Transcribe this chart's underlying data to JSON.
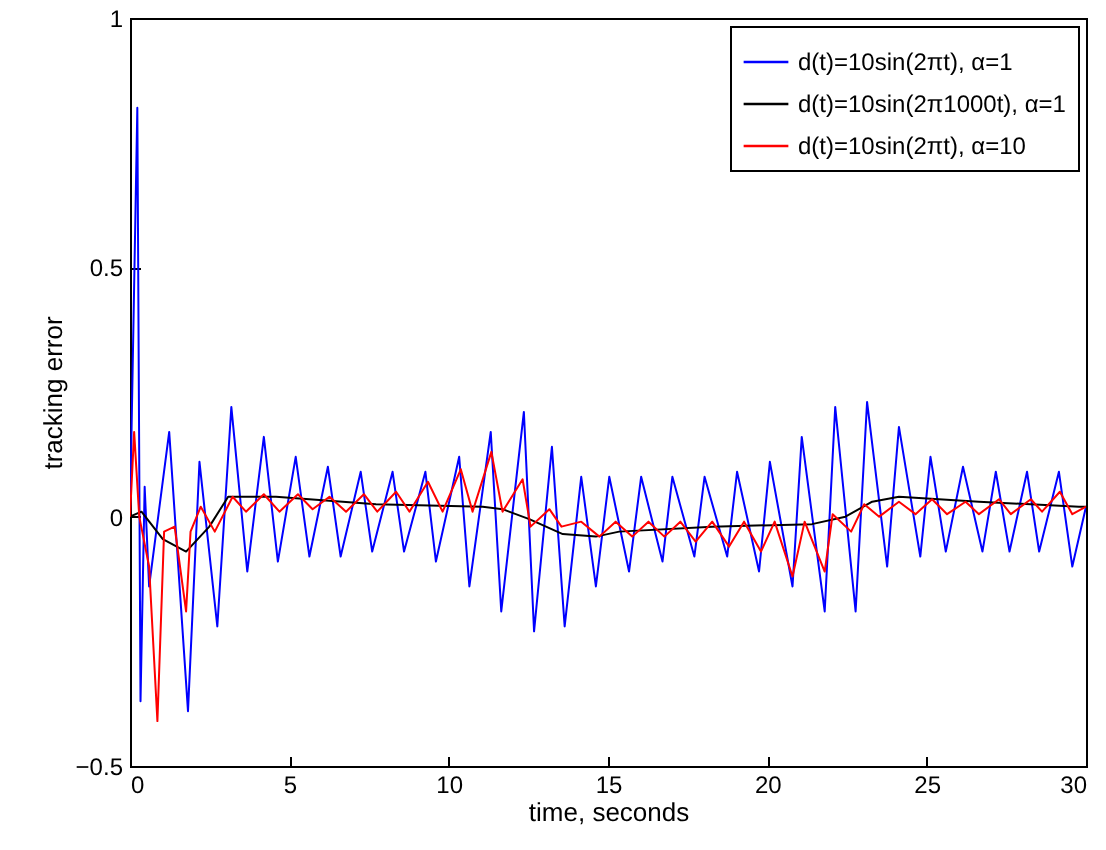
{
  "chart_data": {
    "type": "line",
    "xlabel": "time, seconds",
    "ylabel": "tracking error",
    "xlim": [
      0,
      30
    ],
    "ylim": [
      -0.5,
      1
    ],
    "xticks": [
      0,
      5,
      10,
      15,
      20,
      25,
      30
    ],
    "yticks": [
      -0.5,
      0,
      0.5,
      1
    ],
    "grid": false,
    "legend": "top right",
    "marker": "none",
    "line_style": "solid",
    "series": [
      {
        "name": "d(t)=10sin(2πt), α=1",
        "color": "#0000ff",
        "x": [
          0,
          0.23,
          0.33,
          0.46,
          0.6,
          1.23,
          1.82,
          2.18,
          2.74,
          3.18,
          3.68,
          4.2,
          4.64,
          5.2,
          5.63,
          6.21,
          6.61,
          7.24,
          7.6,
          8.24,
          8.6,
          9.27,
          9.6,
          10.33,
          10.65,
          11.32,
          11.65,
          12.36,
          12.68,
          13.24,
          13.64,
          14.16,
          14.62,
          15.04,
          15.66,
          16.04,
          16.71,
          17.02,
          17.71,
          18.03,
          18.74,
          19.05,
          19.74,
          20.08,
          20.79,
          21.08,
          21.8,
          22.13,
          22.77,
          23.13,
          23.76,
          24.13,
          24.8,
          25.12,
          25.6,
          26.14,
          26.75,
          27.17,
          27.6,
          28.15,
          28.53,
          29.15,
          29.57,
          30
        ],
        "values": [
          0,
          0.82,
          -0.37,
          0.06,
          -0.14,
          0.17,
          -0.39,
          0.11,
          -0.22,
          0.22,
          -0.11,
          0.16,
          -0.09,
          0.12,
          -0.08,
          0.1,
          -0.08,
          0.09,
          -0.07,
          0.09,
          -0.07,
          0.09,
          -0.09,
          0.12,
          -0.14,
          0.17,
          -0.19,
          0.21,
          -0.23,
          0.14,
          -0.22,
          0.08,
          -0.14,
          0.08,
          -0.11,
          0.08,
          -0.09,
          0.08,
          -0.08,
          0.08,
          -0.08,
          0.09,
          -0.11,
          0.11,
          -0.14,
          0.16,
          -0.19,
          0.22,
          -0.19,
          0.23,
          -0.1,
          0.18,
          -0.08,
          0.12,
          -0.07,
          0.1,
          -0.07,
          0.09,
          -0.07,
          0.09,
          -0.07,
          0.09,
          -0.1,
          0.02
        ]
      },
      {
        "name": "d(t)=10sin(2π1000t), α=1",
        "color": "#000000",
        "x": [
          0,
          0.36,
          1.03,
          1.76,
          2.49,
          3.08,
          4.58,
          7.72,
          11.07,
          11.69,
          12.53,
          13.58,
          14.62,
          15.35,
          18.27,
          21.4,
          22.45,
          23.29,
          24.13,
          26.64,
          29.78,
          30
        ],
        "values": [
          0,
          0.01,
          -0.045,
          -0.07,
          -0.02,
          0.04,
          0.04,
          0.025,
          0.02,
          0.015,
          -0.005,
          -0.035,
          -0.04,
          -0.03,
          -0.02,
          -0.015,
          0,
          0.03,
          0.04,
          0.03,
          0.02,
          0.02
        ]
      },
      {
        "name": "d(t)=10sin(2πt), α=10",
        "color": "#ff0000",
        "x": [
          0,
          0.13,
          0.29,
          0.6,
          0.86,
          1.07,
          1.4,
          1.76,
          1.9,
          2.22,
          2.66,
          3.22,
          3.64,
          4.2,
          4.69,
          5.27,
          5.73,
          6.26,
          6.78,
          7.34,
          7.76,
          8.35,
          8.77,
          9.35,
          9.81,
          10.38,
          10.75,
          11.34,
          11.69,
          12.32,
          12.57,
          13.16,
          13.54,
          14.16,
          14.73,
          15.24,
          15.76,
          16.27,
          16.77,
          17.27,
          17.75,
          18.27,
          18.8,
          19.27,
          19.8,
          20.23,
          20.79,
          21.17,
          21.8,
          22.05,
          22.63,
          23.04,
          23.51,
          24.13,
          24.65,
          25.17,
          25.64,
          26.22,
          26.64,
          27.27,
          27.64,
          28.27,
          28.62,
          29.18,
          29.57,
          30
        ],
        "values": [
          0,
          0.17,
          0,
          -0.1,
          -0.41,
          -0.03,
          -0.02,
          -0.19,
          -0.03,
          0.02,
          -0.03,
          0.04,
          0.01,
          0.045,
          0.01,
          0.045,
          0.015,
          0.04,
          0.01,
          0.045,
          0.01,
          0.05,
          0.01,
          0.07,
          0.01,
          0.095,
          0.01,
          0.13,
          0.01,
          0.075,
          -0.02,
          0.015,
          -0.02,
          -0.01,
          -0.04,
          -0.01,
          -0.04,
          -0.01,
          -0.04,
          -0.01,
          -0.05,
          -0.01,
          -0.06,
          -0.01,
          -0.07,
          -0.01,
          -0.12,
          -0.01,
          -0.11,
          0.005,
          -0.03,
          0.025,
          0,
          0.03,
          0.005,
          0.035,
          0.005,
          0.03,
          0.005,
          0.035,
          0.005,
          0.035,
          0.01,
          0.05,
          0.005,
          0.02
        ]
      }
    ]
  }
}
